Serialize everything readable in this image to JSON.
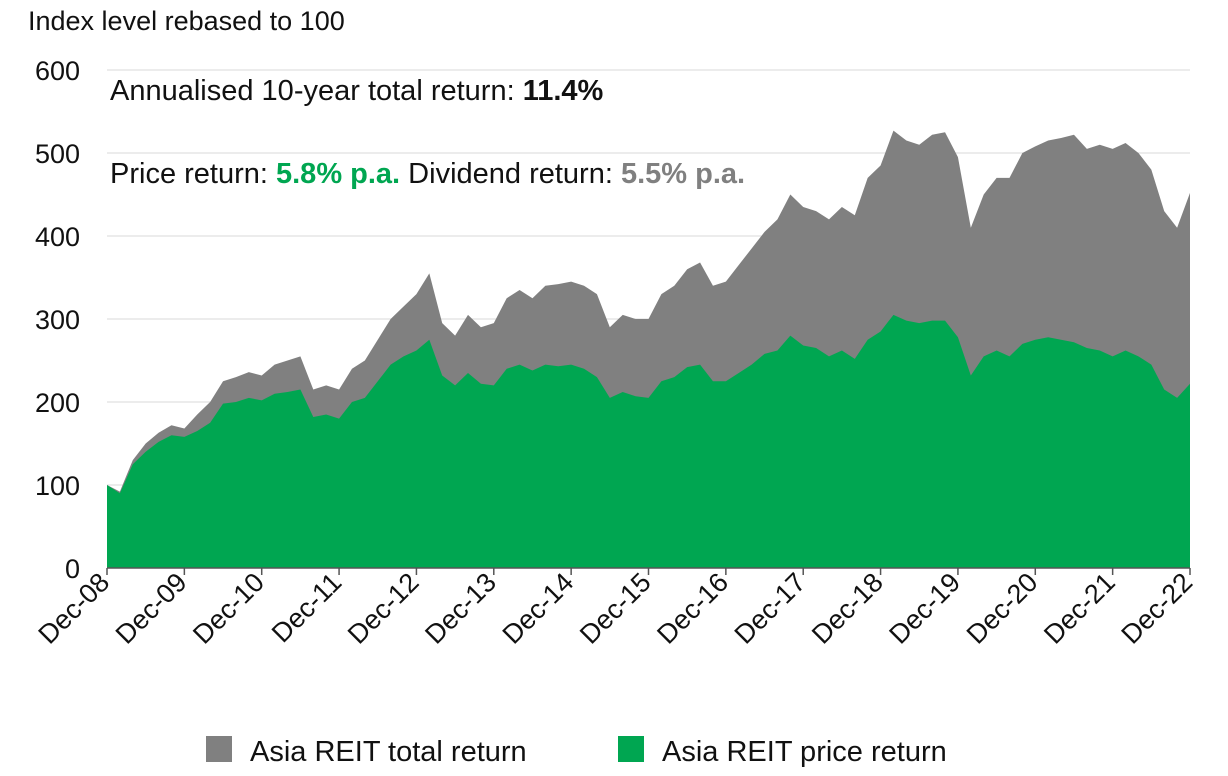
{
  "chart_data": {
    "type": "area",
    "ylabel": "Index level rebased to 100",
    "ylim": [
      0,
      600
    ],
    "yticks": [
      0,
      100,
      200,
      300,
      400,
      500,
      600
    ],
    "grid": true,
    "legend_position": "bottom",
    "x_start": "Dec-08",
    "x_end": "Dec-22",
    "x_tick_labels": [
      "Dec-08",
      "Dec-09",
      "Dec-10",
      "Dec-11",
      "Dec-12",
      "Dec-13",
      "Dec-14",
      "Dec-15",
      "Dec-16",
      "Dec-17",
      "Dec-18",
      "Dec-19",
      "Dec-20",
      "Dec-21",
      "Dec-22"
    ],
    "annotations": {
      "line1_text": "Annualised 10-year total return: ",
      "line1_value": "11.4%",
      "line2_price_label": "Price return: ",
      "line2_price_value": "5.8% p.a.",
      "line2_div_label": " Dividend return: ",
      "line2_div_value": "5.5% p.a."
    },
    "series": [
      {
        "name": "Asia REIT total return",
        "color": "#808080",
        "points": [
          [
            "Dec-08",
            100
          ],
          [
            "Feb-09",
            92
          ],
          [
            "Apr-09",
            130
          ],
          [
            "Jun-09",
            150
          ],
          [
            "Aug-09",
            163
          ],
          [
            "Oct-09",
            172
          ],
          [
            "Dec-09",
            168
          ],
          [
            "Feb-10",
            185
          ],
          [
            "Apr-10",
            200
          ],
          [
            "Jun-10",
            225
          ],
          [
            "Aug-10",
            230
          ],
          [
            "Oct-10",
            236
          ],
          [
            "Dec-10",
            232
          ],
          [
            "Feb-11",
            245
          ],
          [
            "Apr-11",
            250
          ],
          [
            "Jun-11",
            255
          ],
          [
            "Aug-11",
            215
          ],
          [
            "Oct-11",
            220
          ],
          [
            "Dec-11",
            215
          ],
          [
            "Feb-12",
            240
          ],
          [
            "Apr-12",
            250
          ],
          [
            "Jun-12",
            275
          ],
          [
            "Aug-12",
            300
          ],
          [
            "Oct-12",
            315
          ],
          [
            "Dec-12",
            330
          ],
          [
            "Feb-13",
            355
          ],
          [
            "Apr-13",
            295
          ],
          [
            "Jun-13",
            280
          ],
          [
            "Aug-13",
            305
          ],
          [
            "Oct-13",
            290
          ],
          [
            "Dec-13",
            295
          ],
          [
            "Feb-14",
            325
          ],
          [
            "Apr-14",
            335
          ],
          [
            "Jun-14",
            325
          ],
          [
            "Aug-14",
            340
          ],
          [
            "Oct-14",
            342
          ],
          [
            "Dec-14",
            345
          ],
          [
            "Feb-15",
            340
          ],
          [
            "Apr-15",
            330
          ],
          [
            "Jun-15",
            290
          ],
          [
            "Aug-15",
            305
          ],
          [
            "Oct-15",
            300
          ],
          [
            "Dec-15",
            300
          ],
          [
            "Feb-16",
            330
          ],
          [
            "Apr-16",
            340
          ],
          [
            "Jun-16",
            360
          ],
          [
            "Aug-16",
            368
          ],
          [
            "Oct-16",
            340
          ],
          [
            "Dec-16",
            345
          ],
          [
            "Feb-17",
            365
          ],
          [
            "Apr-17",
            385
          ],
          [
            "Jun-17",
            405
          ],
          [
            "Aug-17",
            420
          ],
          [
            "Oct-17",
            450
          ],
          [
            "Dec-17",
            435
          ],
          [
            "Feb-18",
            430
          ],
          [
            "Apr-18",
            420
          ],
          [
            "Jun-18",
            435
          ],
          [
            "Aug-18",
            425
          ],
          [
            "Oct-18",
            470
          ],
          [
            "Dec-18",
            485
          ],
          [
            "Feb-19",
            527
          ],
          [
            "Apr-19",
            515
          ],
          [
            "Jun-19",
            510
          ],
          [
            "Aug-19",
            522
          ],
          [
            "Oct-19",
            525
          ],
          [
            "Dec-19",
            495
          ],
          [
            "Feb-20",
            410
          ],
          [
            "Apr-20",
            450
          ],
          [
            "Jun-20",
            470
          ],
          [
            "Aug-20",
            470
          ],
          [
            "Oct-20",
            500
          ],
          [
            "Dec-20",
            508
          ],
          [
            "Feb-21",
            515
          ],
          [
            "Apr-21",
            518
          ],
          [
            "Jun-21",
            522
          ],
          [
            "Aug-21",
            505
          ],
          [
            "Oct-21",
            510
          ],
          [
            "Dec-21",
            505
          ],
          [
            "Feb-22",
            512
          ],
          [
            "Apr-22",
            500
          ],
          [
            "Jun-22",
            480
          ],
          [
            "Aug-22",
            430
          ],
          [
            "Oct-22",
            410
          ],
          [
            "Dec-22",
            452
          ]
        ]
      },
      {
        "name": "Asia REIT price return",
        "color": "#00A651",
        "points": [
          [
            "Dec-08",
            100
          ],
          [
            "Feb-09",
            90
          ],
          [
            "Apr-09",
            125
          ],
          [
            "Jun-09",
            140
          ],
          [
            "Aug-09",
            152
          ],
          [
            "Oct-09",
            160
          ],
          [
            "Dec-09",
            158
          ],
          [
            "Feb-10",
            165
          ],
          [
            "Apr-10",
            175
          ],
          [
            "Jun-10",
            198
          ],
          [
            "Aug-10",
            200
          ],
          [
            "Oct-10",
            205
          ],
          [
            "Dec-10",
            202
          ],
          [
            "Feb-11",
            210
          ],
          [
            "Apr-11",
            212
          ],
          [
            "Jun-11",
            215
          ],
          [
            "Aug-11",
            182
          ],
          [
            "Oct-11",
            185
          ],
          [
            "Dec-11",
            180
          ],
          [
            "Feb-12",
            200
          ],
          [
            "Apr-12",
            205
          ],
          [
            "Jun-12",
            225
          ],
          [
            "Aug-12",
            245
          ],
          [
            "Oct-12",
            255
          ],
          [
            "Dec-12",
            262
          ],
          [
            "Feb-13",
            275
          ],
          [
            "Apr-13",
            232
          ],
          [
            "Jun-13",
            220
          ],
          [
            "Aug-13",
            235
          ],
          [
            "Oct-13",
            222
          ],
          [
            "Dec-13",
            220
          ],
          [
            "Feb-14",
            240
          ],
          [
            "Apr-14",
            245
          ],
          [
            "Jun-14",
            238
          ],
          [
            "Aug-14",
            245
          ],
          [
            "Oct-14",
            243
          ],
          [
            "Dec-14",
            245
          ],
          [
            "Feb-15",
            240
          ],
          [
            "Apr-15",
            230
          ],
          [
            "Jun-15",
            205
          ],
          [
            "Aug-15",
            212
          ],
          [
            "Oct-15",
            207
          ],
          [
            "Dec-15",
            205
          ],
          [
            "Feb-16",
            225
          ],
          [
            "Apr-16",
            230
          ],
          [
            "Jun-16",
            242
          ],
          [
            "Aug-16",
            245
          ],
          [
            "Oct-16",
            225
          ],
          [
            "Dec-16",
            225
          ],
          [
            "Feb-17",
            235
          ],
          [
            "Apr-17",
            245
          ],
          [
            "Jun-17",
            258
          ],
          [
            "Aug-17",
            262
          ],
          [
            "Oct-17",
            280
          ],
          [
            "Dec-17",
            268
          ],
          [
            "Feb-18",
            265
          ],
          [
            "Apr-18",
            255
          ],
          [
            "Jun-18",
            262
          ],
          [
            "Aug-18",
            252
          ],
          [
            "Oct-18",
            275
          ],
          [
            "Dec-18",
            285
          ],
          [
            "Feb-19",
            305
          ],
          [
            "Apr-19",
            298
          ],
          [
            "Jun-19",
            295
          ],
          [
            "Aug-19",
            298
          ],
          [
            "Oct-19",
            298
          ],
          [
            "Dec-19",
            278
          ],
          [
            "Feb-20",
            232
          ],
          [
            "Apr-20",
            255
          ],
          [
            "Jun-20",
            262
          ],
          [
            "Aug-20",
            255
          ],
          [
            "Oct-20",
            270
          ],
          [
            "Dec-20",
            275
          ],
          [
            "Feb-21",
            278
          ],
          [
            "Apr-21",
            275
          ],
          [
            "Jun-21",
            272
          ],
          [
            "Aug-21",
            265
          ],
          [
            "Oct-21",
            262
          ],
          [
            "Dec-21",
            255
          ],
          [
            "Feb-22",
            262
          ],
          [
            "Apr-22",
            255
          ],
          [
            "Jun-22",
            245
          ],
          [
            "Aug-22",
            215
          ],
          [
            "Oct-22",
            205
          ],
          [
            "Dec-22",
            222
          ]
        ]
      }
    ]
  }
}
